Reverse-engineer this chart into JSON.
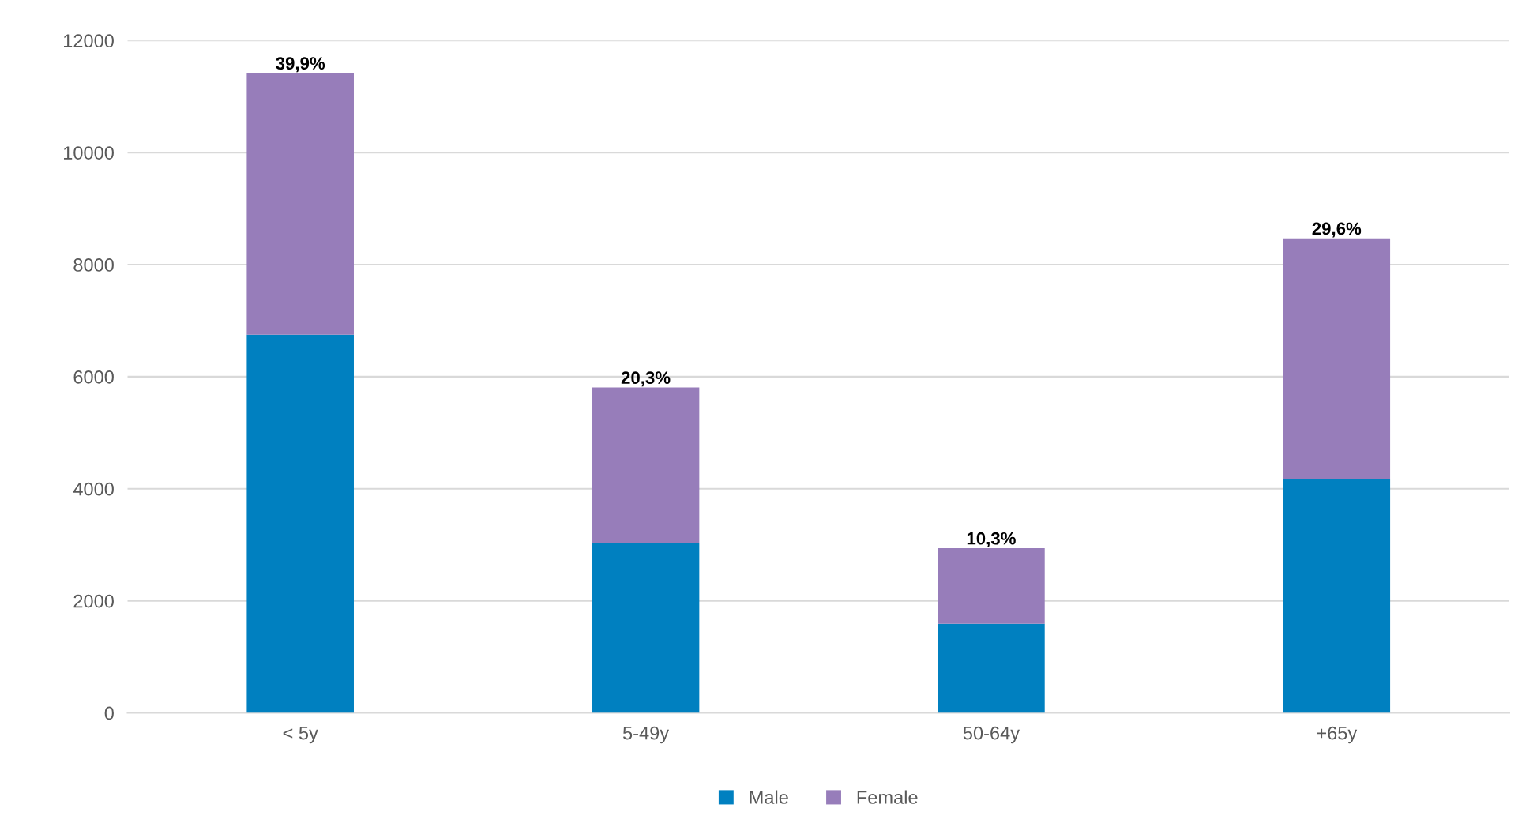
{
  "chart_data": {
    "type": "bar",
    "stacked": true,
    "categories": [
      "< 5y",
      "5-49y",
      "50-64y",
      "+65y"
    ],
    "series": [
      {
        "name": "Male",
        "color": "#0080c0",
        "values": [
          6750,
          3030,
          1590,
          4180
        ]
      },
      {
        "name": "Female",
        "color": "#977dba",
        "values": [
          4670,
          2780,
          1350,
          4290
        ]
      }
    ],
    "annotations": [
      {
        "text": "39,9%",
        "x": "< 5y",
        "y": 11420
      },
      {
        "text": "20,3%",
        "x": "5-49y",
        "y": 5810
      },
      {
        "text": "10,3%",
        "x": "50-64y",
        "y": 2940
      },
      {
        "text": "29,6%",
        "x": "+65y",
        "y": 8470
      }
    ],
    "ylim": [
      0,
      12000
    ],
    "yticks": [
      0,
      2000,
      4000,
      6000,
      8000,
      10000,
      12000
    ],
    "grid": "y",
    "legend": "bottom"
  }
}
